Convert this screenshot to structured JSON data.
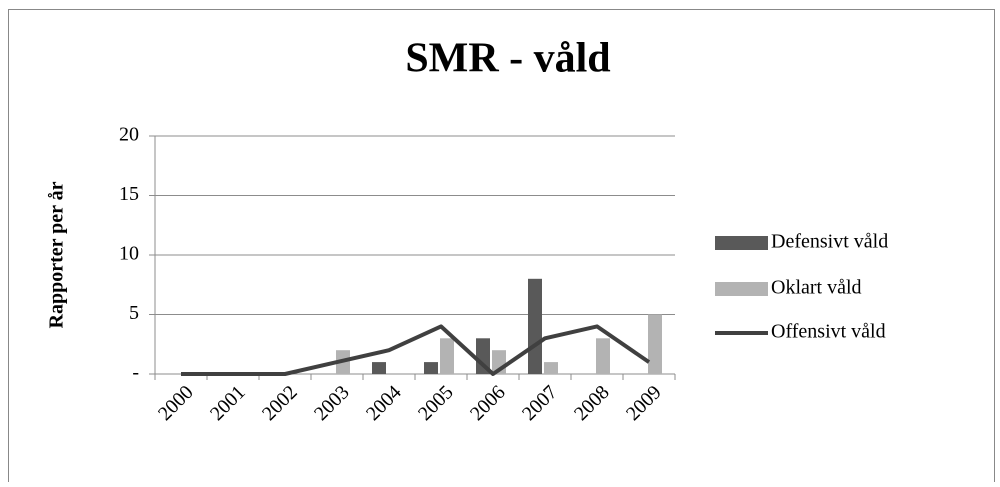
{
  "chart_data": {
    "type": "bar",
    "title": "SMR - våld",
    "y_label": "Rapporter per år",
    "categories": [
      "2000",
      "2001",
      "2002",
      "2003",
      "2004",
      "2005",
      "2006",
      "2007",
      "2008",
      "2009"
    ],
    "series": [
      {
        "name": "Defensivt våld",
        "type": "bar",
        "color": "#595959",
        "values": [
          0,
          0,
          0,
          0,
          1,
          1,
          3,
          8,
          0,
          0
        ]
      },
      {
        "name": "Oklart våld",
        "type": "bar",
        "color": "#b3b3b3",
        "values": [
          0,
          0,
          0,
          2,
          0,
          3,
          2,
          1,
          3,
          5
        ]
      },
      {
        "name": "Offensivt våld",
        "type": "line",
        "color": "#404040",
        "values": [
          0,
          0,
          0,
          1,
          2,
          4,
          0,
          3,
          4,
          1
        ]
      }
    ],
    "ylim": [
      0,
      20
    ],
    "yticks": [
      {
        "value": 0,
        "label": "-"
      },
      5,
      10,
      15,
      20
    ],
    "grid": true,
    "legend": "right"
  }
}
